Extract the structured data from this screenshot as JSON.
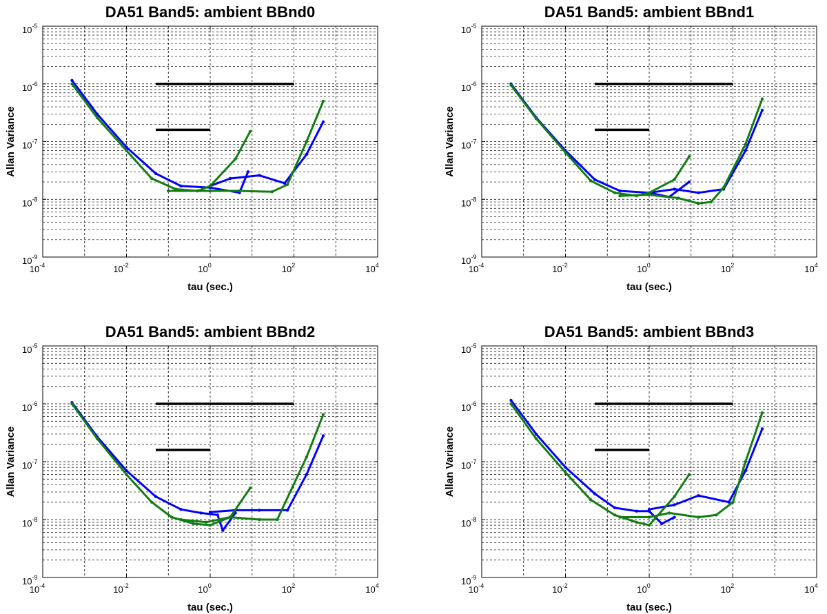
{
  "colors": {
    "blue": "#0000ff",
    "green": "#127d12",
    "black": "#000000"
  },
  "chart_data": [
    {
      "type": "line",
      "title": "DA51 Band5: ambient BBnd0",
      "xlabel": "tau (sec.)",
      "ylabel": "Allan Variance",
      "xscale": "log",
      "yscale": "log",
      "xlim": [
        0.0001,
        10000
      ],
      "ylim": [
        1e-09,
        1e-05
      ],
      "grid": true,
      "x_ticks": [
        {
          "base": "10",
          "exp": "-4"
        },
        {
          "base": "10",
          "exp": "-2"
        },
        {
          "base": "10",
          "exp": "0"
        },
        {
          "base": "10",
          "exp": "2"
        },
        {
          "base": "10",
          "exp": "4"
        }
      ],
      "y_ticks": [
        {
          "base": "10",
          "exp": "-9"
        },
        {
          "base": "10",
          "exp": "-8"
        },
        {
          "base": "10",
          "exp": "-7"
        },
        {
          "base": "10",
          "exp": "-6"
        },
        {
          "base": "10",
          "exp": "-5"
        }
      ],
      "reference_lines": [
        {
          "x": [
            0.05,
            100
          ],
          "y": [
            1e-06,
            1e-06
          ]
        },
        {
          "x": [
            0.05,
            1
          ],
          "y": [
            1.6e-07,
            1.6e-07
          ]
        }
      ],
      "series": [
        {
          "name": "blue-1",
          "color": "blue",
          "x": [
            0.0005,
            0.002,
            0.01,
            0.05,
            0.2,
            1,
            5,
            8
          ],
          "y": [
            1.15e-06,
            3e-07,
            8e-08,
            2.8e-08,
            1.7e-08,
            1.6e-08,
            1.3e-08,
            3e-08
          ]
        },
        {
          "name": "blue-2",
          "color": "blue",
          "x": [
            1,
            3,
            15,
            60,
            200,
            500
          ],
          "y": [
            1.7e-08,
            2.3e-08,
            2.6e-08,
            1.9e-08,
            6e-08,
            2.2e-07
          ]
        },
        {
          "name": "green-1",
          "color": "green",
          "x": [
            0.0005,
            0.002,
            0.01,
            0.04,
            0.15,
            0.5,
            1,
            4,
            9
          ],
          "y": [
            1e-06,
            2.6e-07,
            7e-08,
            2.3e-08,
            1.5e-08,
            1.4e-08,
            1.7e-08,
            5e-08,
            1.5e-07
          ]
        },
        {
          "name": "green-2",
          "color": "green",
          "x": [
            0.1,
            1,
            5,
            30,
            70,
            200,
            500
          ],
          "y": [
            1.4e-08,
            1.4e-08,
            1.4e-08,
            1.35e-08,
            1.8e-08,
            1e-07,
            5e-07
          ]
        }
      ]
    },
    {
      "type": "line",
      "title": "DA51 Band5: ambient BBnd1",
      "xlabel": "tau (sec.)",
      "ylabel": "Allan Variance",
      "xscale": "log",
      "yscale": "log",
      "xlim": [
        0.0001,
        10000
      ],
      "ylim": [
        1e-09,
        1e-05
      ],
      "grid": true,
      "x_ticks": [
        {
          "base": "10",
          "exp": "-4"
        },
        {
          "base": "10",
          "exp": "-2"
        },
        {
          "base": "10",
          "exp": "0"
        },
        {
          "base": "10",
          "exp": "2"
        },
        {
          "base": "10",
          "exp": "4"
        }
      ],
      "y_ticks": [
        {
          "base": "10",
          "exp": "-9"
        },
        {
          "base": "10",
          "exp": "-8"
        },
        {
          "base": "10",
          "exp": "-7"
        },
        {
          "base": "10",
          "exp": "-6"
        },
        {
          "base": "10",
          "exp": "-5"
        }
      ],
      "reference_lines": [
        {
          "x": [
            0.05,
            100
          ],
          "y": [
            1e-06,
            1e-06
          ]
        },
        {
          "x": [
            0.05,
            1
          ],
          "y": [
            1.6e-07,
            1.6e-07
          ]
        }
      ],
      "series": [
        {
          "name": "blue-1",
          "color": "blue",
          "x": [
            0.0005,
            0.002,
            0.01,
            0.05,
            0.2,
            1,
            3,
            9
          ],
          "y": [
            1e-06,
            2.6e-07,
            7e-08,
            2.2e-08,
            1.4e-08,
            1.3e-08,
            1.1e-08,
            2e-08
          ]
        },
        {
          "name": "blue-2",
          "color": "blue",
          "x": [
            1,
            4,
            15,
            60,
            200,
            500
          ],
          "y": [
            1.3e-08,
            1.5e-08,
            1.3e-08,
            1.5e-08,
            7e-08,
            3.5e-07
          ]
        },
        {
          "name": "green-1",
          "color": "green",
          "x": [
            0.0005,
            0.002,
            0.01,
            0.04,
            0.15,
            0.5,
            1,
            4,
            9
          ],
          "y": [
            9.5e-07,
            2.5e-07,
            6.5e-08,
            2.1e-08,
            1.3e-08,
            1.15e-08,
            1.3e-08,
            2.2e-08,
            5.5e-08
          ]
        },
        {
          "name": "green-2",
          "color": "green",
          "x": [
            0.2,
            1,
            5,
            15,
            30,
            60,
            200,
            500
          ],
          "y": [
            1.15e-08,
            1.2e-08,
            1.05e-08,
            8.5e-09,
            9e-09,
            1.6e-08,
            9e-08,
            5.5e-07
          ]
        }
      ]
    },
    {
      "type": "line",
      "title": "DA51 Band5: ambient BBnd2",
      "xlabel": "tau (sec.)",
      "ylabel": "Allan Variance",
      "xscale": "log",
      "yscale": "log",
      "xlim": [
        0.0001,
        10000
      ],
      "ylim": [
        1e-09,
        1e-05
      ],
      "grid": true,
      "x_ticks": [
        {
          "base": "10",
          "exp": "-4"
        },
        {
          "base": "10",
          "exp": "-2"
        },
        {
          "base": "10",
          "exp": "0"
        },
        {
          "base": "10",
          "exp": "2"
        },
        {
          "base": "10",
          "exp": "4"
        }
      ],
      "y_ticks": [
        {
          "base": "10",
          "exp": "-9"
        },
        {
          "base": "10",
          "exp": "-8"
        },
        {
          "base": "10",
          "exp": "-7"
        },
        {
          "base": "10",
          "exp": "-6"
        },
        {
          "base": "10",
          "exp": "-5"
        }
      ],
      "reference_lines": [
        {
          "x": [
            0.05,
            100
          ],
          "y": [
            1e-06,
            1e-06
          ]
        },
        {
          "x": [
            0.05,
            1
          ],
          "y": [
            1.6e-07,
            1.6e-07
          ]
        }
      ],
      "series": [
        {
          "name": "blue-1",
          "color": "blue",
          "x": [
            0.0005,
            0.002,
            0.01,
            0.05,
            0.2,
            0.6,
            1.5,
            2,
            4
          ],
          "y": [
            1.05e-06,
            2.7e-07,
            7e-08,
            2.5e-08,
            1.5e-08,
            1.3e-08,
            1.2e-08,
            6.5e-09,
            1.3e-08
          ]
        },
        {
          "name": "blue-2",
          "color": "blue",
          "x": [
            1,
            4,
            15,
            70,
            200,
            500
          ],
          "y": [
            1.35e-08,
            1.45e-08,
            1.45e-08,
            1.45e-08,
            6e-08,
            2.8e-07
          ]
        },
        {
          "name": "green-1",
          "color": "green",
          "x": [
            0.0005,
            0.002,
            0.01,
            0.04,
            0.12,
            0.4,
            1,
            3,
            9
          ],
          "y": [
            1e-06,
            2.5e-07,
            6e-08,
            2e-08,
            1.1e-08,
            8.5e-09,
            8e-09,
            1.1e-08,
            3.5e-08
          ]
        },
        {
          "name": "green-2",
          "color": "green",
          "x": [
            0.2,
            0.8,
            3,
            15,
            40,
            200,
            500
          ],
          "y": [
            1e-08,
            9e-09,
            1.1e-08,
            1e-08,
            1e-08,
            1.2e-07,
            6.5e-07
          ]
        }
      ]
    },
    {
      "type": "line",
      "title": "DA51 Band5: ambient BBnd3",
      "xlabel": "tau (sec.)",
      "ylabel": "Allan Variance",
      "xscale": "log",
      "yscale": "log",
      "xlim": [
        0.0001,
        10000
      ],
      "ylim": [
        1e-09,
        1e-05
      ],
      "grid": true,
      "x_ticks": [
        {
          "base": "10",
          "exp": "-4"
        },
        {
          "base": "10",
          "exp": "-2"
        },
        {
          "base": "10",
          "exp": "0"
        },
        {
          "base": "10",
          "exp": "2"
        },
        {
          "base": "10",
          "exp": "4"
        }
      ],
      "y_ticks": [
        {
          "base": "10",
          "exp": "-9"
        },
        {
          "base": "10",
          "exp": "-8"
        },
        {
          "base": "10",
          "exp": "-7"
        },
        {
          "base": "10",
          "exp": "-6"
        },
        {
          "base": "10",
          "exp": "-5"
        }
      ],
      "reference_lines": [
        {
          "x": [
            0.05,
            100
          ],
          "y": [
            1e-06,
            1e-06
          ]
        },
        {
          "x": [
            0.05,
            1
          ],
          "y": [
            1.6e-07,
            1.6e-07
          ]
        }
      ],
      "series": [
        {
          "name": "blue-1",
          "color": "blue",
          "x": [
            0.0005,
            0.002,
            0.01,
            0.05,
            0.15,
            0.5,
            1,
            2,
            4
          ],
          "y": [
            1.15e-06,
            3e-07,
            8e-08,
            2.8e-08,
            1.6e-08,
            1.4e-08,
            1.4e-08,
            8.5e-09,
            1.1e-08
          ]
        },
        {
          "name": "blue-2",
          "color": "blue",
          "x": [
            1,
            4,
            15,
            80,
            200,
            500
          ],
          "y": [
            1.5e-08,
            1.8e-08,
            2.6e-08,
            2e-08,
            7e-08,
            3.7e-07
          ]
        },
        {
          "name": "green-1",
          "color": "green",
          "x": [
            0.0005,
            0.002,
            0.01,
            0.04,
            0.15,
            0.5,
            1,
            4,
            9
          ],
          "y": [
            1e-06,
            2.5e-07,
            6.5e-08,
            2.2e-08,
            1.2e-08,
            9e-09,
            8e-09,
            2.5e-08,
            6e-08
          ]
        },
        {
          "name": "green-2",
          "color": "green",
          "x": [
            0.2,
            1,
            3,
            15,
            40,
            100,
            200,
            500
          ],
          "y": [
            1.1e-08,
            1.1e-08,
            1.3e-08,
            1.1e-08,
            1.2e-08,
            2e-08,
            1e-07,
            7e-07
          ]
        }
      ]
    }
  ]
}
